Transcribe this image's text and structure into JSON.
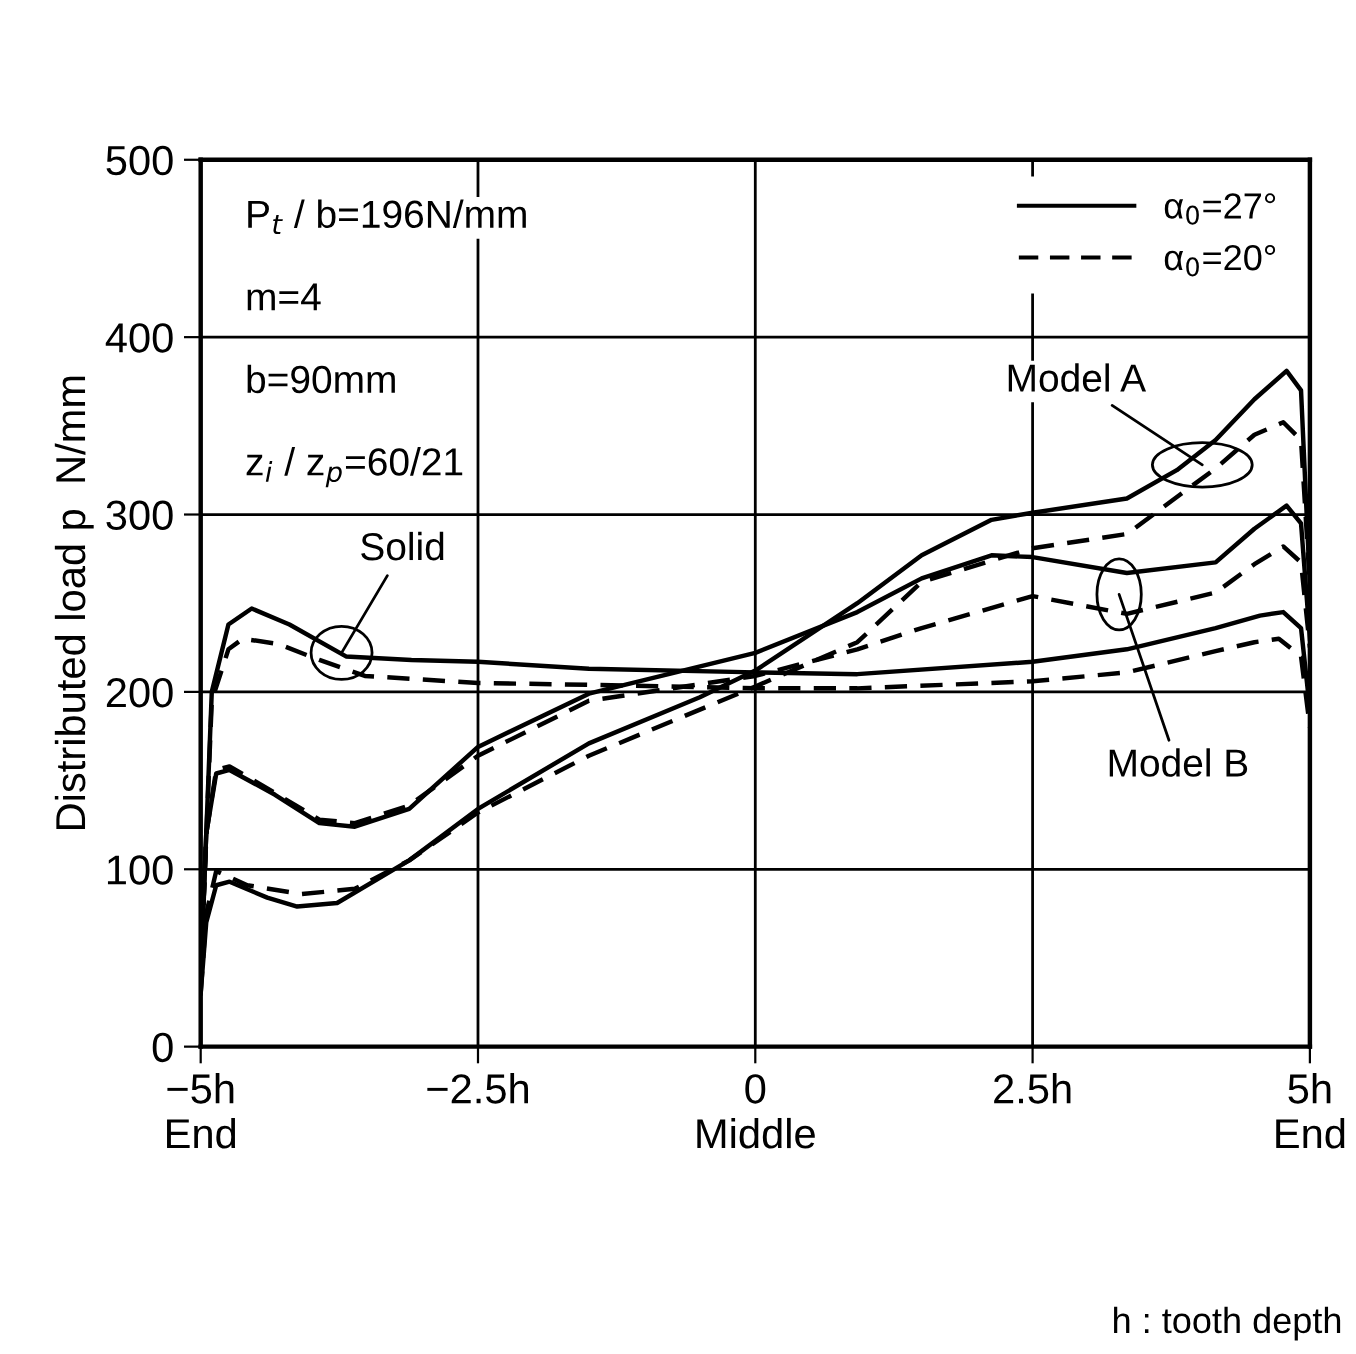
{
  "chart_data": {
    "type": "line",
    "ylabel": "Distributed load p  N/mm",
    "xlim": [
      -5,
      5
    ],
    "ylim": [
      0,
      500
    ],
    "xticks": [
      {
        "value": -5,
        "label": "−5h\nEnd"
      },
      {
        "value": -2.5,
        "label": "−2.5h"
      },
      {
        "value": 0,
        "label": "0\nMiddle"
      },
      {
        "value": 2.5,
        "label": "2.5h"
      },
      {
        "value": 5,
        "label": "5h\nEnd"
      }
    ],
    "yticks": [
      0,
      100,
      200,
      300,
      400,
      500
    ],
    "grid": true,
    "legend": "top right",
    "marker": "none",
    "series": [
      {
        "name": "α$_{0}$=27°",
        "color": "#000000",
        "line_style": "solid",
        "x": [
          -5,
          -4.9,
          -4.75,
          -4.54,
          -4.2,
          -3.69,
          -3.1,
          -2.5,
          -1.5,
          0,
          0.92,
          2.5,
          3.35,
          4.15,
          4.55,
          4.76,
          4.92,
          5
        ],
        "values": [
          40,
          200,
          238,
          247,
          238,
          220,
          218,
          217,
          213,
          211,
          210,
          217,
          224,
          236,
          243,
          245,
          236,
          190
        ]
      },
      {
        "name": "α$_{0}$=20°",
        "color": "#000000",
        "line_style": "dashed",
        "x": [
          -5,
          -4.9,
          -4.75,
          -4.62,
          -4.3,
          -3.93,
          -3.52,
          -2.5,
          -1.5,
          0,
          0.92,
          2.5,
          3.35,
          4.15,
          4.5,
          4.72,
          4.92,
          5
        ],
        "values": [
          40,
          195,
          224,
          230,
          227,
          218,
          209,
          205,
          204,
          202,
          202,
          206,
          211,
          223,
          228,
          230,
          220,
          180
        ]
      },
      {
        "color": "#000000",
        "line_style": "solid",
        "x": [
          -5,
          -4.95,
          -4.86,
          -4.74,
          -4.4,
          -4.13,
          -3.77,
          -3.12,
          -2.5,
          -1.5,
          -0.5,
          0,
          0.92,
          1.5,
          2.13,
          2.5,
          3.35,
          3.8,
          4.15,
          4.5,
          4.79,
          4.92,
          5
        ],
        "values": [
          30,
          70,
          91,
          93,
          84,
          79,
          81,
          105,
          134,
          171,
          197,
          212,
          250,
          277,
          297,
          301,
          309,
          325,
          342,
          365,
          381,
          370,
          260
        ]
      },
      {
        "color": "#000000",
        "line_style": "dashed",
        "x": [
          -5,
          -4.95,
          -4.86,
          -4.58,
          -4.09,
          -3.61,
          -3.12,
          -2.5,
          -1.5,
          0,
          0.92,
          1.5,
          2.5,
          3.35,
          4.15,
          4.5,
          4.76,
          4.92,
          5
        ],
        "values": [
          30,
          75,
          99,
          91,
          86,
          89,
          105,
          132,
          164,
          203,
          228,
          262,
          281,
          289,
          326,
          345,
          352,
          342,
          260
        ]
      },
      {
        "color": "#000000",
        "line_style": "solid",
        "x": [
          -5,
          -4.95,
          -4.86,
          -4.74,
          -4.33,
          -3.93,
          -3.61,
          -3.12,
          -2.5,
          -1.5,
          0,
          0.92,
          1.5,
          2.13,
          2.5,
          3.35,
          4.15,
          4.5,
          4.79,
          4.92,
          5
        ],
        "values": [
          40,
          120,
          154,
          156,
          142,
          126,
          124,
          134,
          169,
          199,
          222,
          245,
          264,
          277,
          276,
          267,
          273,
          292,
          305,
          295,
          230
        ]
      },
      {
        "color": "#000000",
        "line_style": "dashed",
        "x": [
          -5,
          -4.95,
          -4.86,
          -4.74,
          -4.33,
          -3.93,
          -3.61,
          -3.12,
          -2.5,
          -1.5,
          0,
          0.92,
          1.5,
          2.5,
          3.35,
          4.15,
          4.5,
          4.76,
          4.92,
          5
        ],
        "values": [
          40,
          120,
          156,
          158,
          143,
          128,
          126,
          136,
          164,
          195,
          209,
          224,
          236,
          254,
          244,
          256,
          272,
          282,
          273,
          225
        ]
      }
    ],
    "annotations": [
      {
        "text": "Solid",
        "x": -3.73,
        "y": 222
      },
      {
        "text": "Model A",
        "x": 4.03,
        "y": 328
      },
      {
        "text": "Model B",
        "x": 3.28,
        "y": 255
      },
      "P$_{t}$ / b=196N/mm",
      "m=4",
      "b=90mm",
      "z$_{i}$ / z$_{p}$=60/21",
      "h : tooth depth"
    ]
  }
}
